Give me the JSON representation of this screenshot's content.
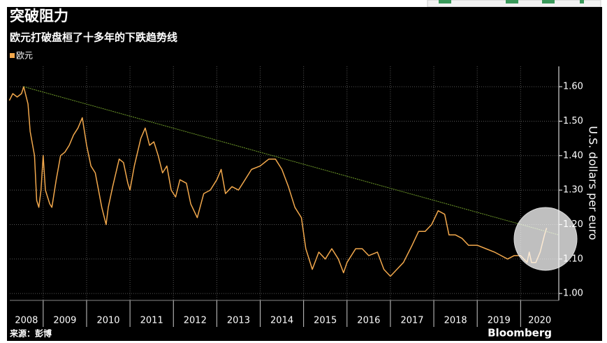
{
  "chart_data": {
    "type": "line",
    "title": "突破阻力",
    "subtitle": "欧元打破盘桓了十多年的下跌趋势线",
    "y_axis_label": "U.S. dollars per euro",
    "source": "来源：彭博",
    "brand": "Bloomberg",
    "x": [
      2008.22,
      2008.3,
      2008.4,
      2008.5,
      2008.55,
      2008.65,
      2008.7,
      2008.8,
      2008.85,
      2008.9,
      2008.95,
      2009.0,
      2009.05,
      2009.15,
      2009.2,
      2009.3,
      2009.4,
      2009.5,
      2009.6,
      2009.7,
      2009.8,
      2009.9,
      2010.0,
      2010.1,
      2010.2,
      2010.35,
      2010.45,
      2010.5,
      2010.6,
      2010.75,
      2010.85,
      2010.95,
      2011.0,
      2011.1,
      2011.25,
      2011.35,
      2011.45,
      2011.55,
      2011.65,
      2011.75,
      2011.85,
      2011.95,
      2012.05,
      2012.15,
      2012.3,
      2012.4,
      2012.55,
      2012.7,
      2012.85,
      2013.0,
      2013.1,
      2013.2,
      2013.35,
      2013.5,
      2013.65,
      2013.8,
      2014.0,
      2014.2,
      2014.35,
      2014.5,
      2014.65,
      2014.8,
      2014.95,
      2015.05,
      2015.2,
      2015.35,
      2015.5,
      2015.65,
      2015.8,
      2015.92,
      2016.0,
      2016.2,
      2016.35,
      2016.5,
      2016.7,
      2016.85,
      2017.0,
      2017.15,
      2017.3,
      2017.5,
      2017.65,
      2017.8,
      2017.95,
      2018.1,
      2018.25,
      2018.35,
      2018.5,
      2018.65,
      2018.8,
      2019.0,
      2019.2,
      2019.4,
      2019.55,
      2019.7,
      2019.85,
      2020.0,
      2020.15,
      2020.2,
      2020.25,
      2020.35,
      2020.45,
      2020.55,
      2020.6
    ],
    "series": [
      {
        "name": "欧元",
        "color": "#f2a84c",
        "values": [
          1.56,
          1.58,
          1.57,
          1.58,
          1.6,
          1.55,
          1.47,
          1.4,
          1.27,
          1.25,
          1.3,
          1.4,
          1.3,
          1.26,
          1.25,
          1.33,
          1.4,
          1.41,
          1.43,
          1.46,
          1.48,
          1.51,
          1.43,
          1.37,
          1.35,
          1.25,
          1.2,
          1.25,
          1.31,
          1.39,
          1.38,
          1.32,
          1.3,
          1.37,
          1.45,
          1.48,
          1.43,
          1.44,
          1.4,
          1.35,
          1.37,
          1.3,
          1.28,
          1.33,
          1.32,
          1.26,
          1.22,
          1.29,
          1.3,
          1.33,
          1.36,
          1.29,
          1.31,
          1.3,
          1.33,
          1.36,
          1.37,
          1.39,
          1.39,
          1.36,
          1.31,
          1.25,
          1.22,
          1.13,
          1.07,
          1.12,
          1.1,
          1.13,
          1.1,
          1.06,
          1.09,
          1.13,
          1.13,
          1.11,
          1.12,
          1.07,
          1.05,
          1.07,
          1.09,
          1.14,
          1.18,
          1.18,
          1.2,
          1.24,
          1.23,
          1.17,
          1.17,
          1.16,
          1.14,
          1.14,
          1.13,
          1.12,
          1.11,
          1.1,
          1.11,
          1.11,
          1.09,
          1.12,
          1.09,
          1.09,
          1.12,
          1.17,
          1.19
        ]
      }
    ],
    "trend_line": {
      "color": "#6f9a2a",
      "x": [
        2008.55,
        2020.88
      ],
      "values": [
        1.6,
        1.17
      ]
    },
    "xlim": [
      2008.23,
      2020.88
    ],
    "xticks": [
      2008,
      2009,
      2010,
      2011,
      2012,
      2013,
      2014,
      2015,
      2016,
      2017,
      2018,
      2019,
      2020
    ],
    "ylim": [
      0.98,
      1.659
    ],
    "yticks": [
      {
        "value": 1.0,
        "label": "1.00"
      },
      {
        "value": 1.1,
        "label": "1.10"
      },
      {
        "value": 1.2,
        "label": "1.20"
      },
      {
        "value": 1.3,
        "label": "1.30"
      },
      {
        "value": 1.4,
        "label": "1.40"
      },
      {
        "value": 1.5,
        "label": "1.50"
      },
      {
        "value": 1.6,
        "label": "1.60"
      }
    ],
    "grid": true
  }
}
